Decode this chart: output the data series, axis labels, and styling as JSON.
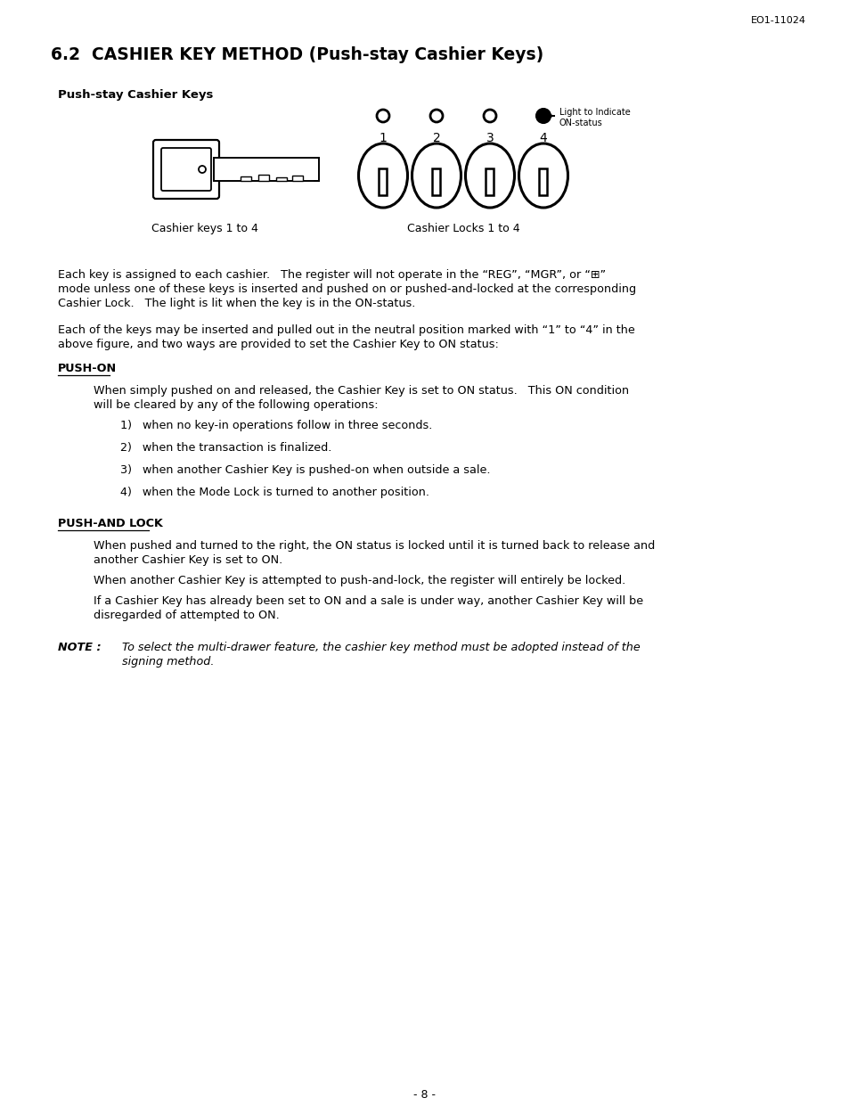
{
  "doc_id": "EO1-11024",
  "page_num": "- 8 -",
  "title": "6.2  CASHIER KEY METHOD (Push-stay Cashier Keys)",
  "subtitle": "Push-stay Cashier Keys",
  "key_labels": [
    "1",
    "2",
    "3",
    "4"
  ],
  "light_note": "Light to Indicate",
  "on_status": "ON-status",
  "cashier_keys_label": "Cashier keys 1 to 4",
  "cashier_locks_label": "Cashier Locks 1 to 4",
  "para1_line1": "Each key is assigned to each cashier.   The register will not operate in the “REG”, “MGR”, or “⊞”",
  "para1_line2": "mode unless one of these keys is inserted and pushed on or pushed-and-locked at the corresponding",
  "para1_line3": "Cashier Lock.   The light is lit when the key is in the ON-status.",
  "para2_line1": "Each of the keys may be inserted and pulled out in the neutral position marked with “1” to “4” in the",
  "para2_line2": "above figure, and two ways are provided to set the Cashier Key to ON status:",
  "heading1": "PUSH-ON",
  "push_on_para1": "When simply pushed on and released, the Cashier Key is set to ON status.   This ON condition",
  "push_on_para2": "will be cleared by any of the following operations:",
  "push_on_items": [
    "1)   when no key-in operations follow in three seconds.",
    "2)   when the transaction is finalized.",
    "3)   when another Cashier Key is pushed-on when outside a sale.",
    "4)   when the Mode Lock is turned to another position."
  ],
  "heading2": "PUSH-AND LOCK",
  "push_lock_para1a": "When pushed and turned to the right, the ON status is locked until it is turned back to release and",
  "push_lock_para1b": "another Cashier Key is set to ON.",
  "push_lock_para2": "When another Cashier Key is attempted to push-and-lock, the register will entirely be locked.",
  "push_lock_para3a": "If a Cashier Key has already been set to ON and a sale is under way, another Cashier Key will be",
  "push_lock_para3b": "disregarded of attempted to ON.",
  "note_label": "NOTE :",
  "note_text1": "To select the multi-drawer feature, the cashier key method must be adopted instead of the",
  "note_text2": "signing method.",
  "bg_color": "#ffffff",
  "text_color": "#000000"
}
